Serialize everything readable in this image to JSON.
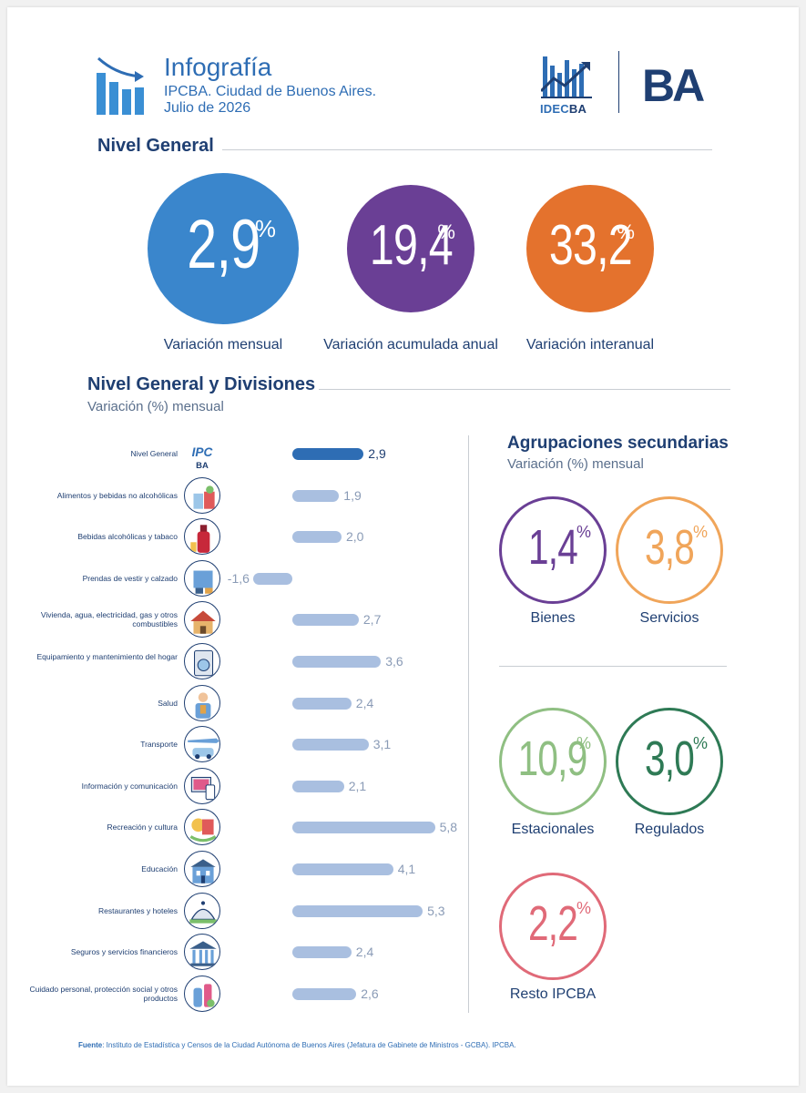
{
  "header": {
    "title": "Infografía",
    "subtitle": "IPCBA. Ciudad de Buenos Aires.",
    "date": "Julio de 2026",
    "logo_idec_a": "IDEC",
    "logo_idec_b": "BA",
    "logo_ba": "BA"
  },
  "nivel_general": {
    "title": "Nivel General",
    "indicators": [
      {
        "value": "2,9",
        "suffix": "%",
        "caption": "Variación mensual",
        "color": "#3a86cc"
      },
      {
        "value": "19,4",
        "suffix": "%",
        "caption": "Variación acumulada anual",
        "color": "#6a3f95"
      },
      {
        "value": "33,2",
        "suffix": "%",
        "caption": "Variación interanual",
        "color": "#e4722d"
      }
    ]
  },
  "divisiones": {
    "title": "Nivel General y Divisiones",
    "subtitle": "Variación (%) mensual"
  },
  "chart_data": {
    "type": "bar",
    "orientation": "horizontal",
    "title": "Nivel General y Divisiones",
    "subtitle": "Variación (%) mensual",
    "categories": [
      "Nivel General",
      "Alimentos y bebidas no alcohólicas",
      "Bebidas alcohólicas y tabaco",
      "Prendas de vestir y calzado",
      "Vivienda, agua, electricidad, gas y otros combustibles",
      "Equipamiento y mantenimiento del hogar",
      "Salud",
      "Transporte",
      "Información y comunicación",
      "Recreación y cultura",
      "Educación",
      "Restaurantes y hoteles",
      "Seguros y servicios financieros",
      "Cuidado personal, protección social y otros productos"
    ],
    "labels": [
      "2,9",
      "1,9",
      "2,0",
      "-1,6",
      "2,7",
      "3,6",
      "2,4",
      "3,1",
      "2,1",
      "5,8",
      "4,1",
      "5,3",
      "2,4",
      "2,6"
    ],
    "values": [
      2.9,
      1.9,
      2.0,
      -1.6,
      2.7,
      3.6,
      2.4,
      3.1,
      2.1,
      5.8,
      4.1,
      5.3,
      2.4,
      2.6
    ],
    "icons": [
      "ipc-logo-icon",
      "groceries-icon",
      "wine-bottle-icon",
      "clothing-icon",
      "house-icon",
      "washing-machine-icon",
      "doctor-icon",
      "airplane-car-icon",
      "computer-phone-icon",
      "theater-icon",
      "school-icon",
      "cloche-icon",
      "bank-icon",
      "personal-care-icon"
    ],
    "highlight_index": 0,
    "colors": {
      "highlight": "#2e6db4",
      "bar": "#a9bfe0"
    }
  },
  "secundarias": {
    "title": "Agrupaciones secundarias",
    "subtitle": "Variación (%) mensual",
    "items": [
      {
        "value": "1,4",
        "suffix": "%",
        "caption": "Bienes",
        "color": "#6a3f95"
      },
      {
        "value": "3,8",
        "suffix": "%",
        "caption": "Servicios",
        "color": "#f0a55a"
      },
      {
        "value": "10,9",
        "suffix": "%",
        "caption": "Estacionales",
        "color": "#8fbf82"
      },
      {
        "value": "3,0",
        "suffix": "%",
        "caption": "Regulados",
        "color": "#2e7a55"
      },
      {
        "value": "2,2",
        "suffix": "%",
        "caption": "Resto IPCBA",
        "color": "#e06a78"
      }
    ]
  },
  "footer": {
    "source_label": "Fuente",
    "source_text": ": Instituto de Estadística y Censos de la Ciudad Autónoma de Buenos Aires (Jefatura de Gabinete de Ministros - GCBA). IPCBA."
  }
}
